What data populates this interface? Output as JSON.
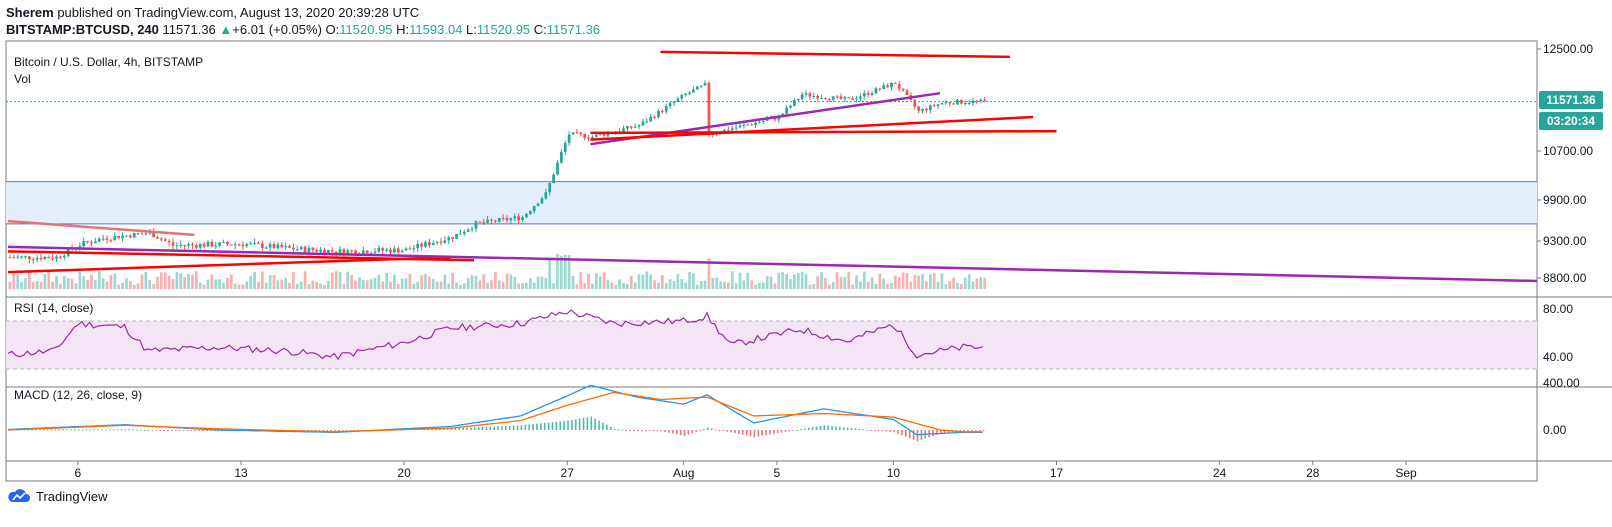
{
  "header": {
    "publisher": "Sherem",
    "published_text": "published on TradingView.com, August 13, 2020 20:39:28 UTC",
    "symbol": "BITSTAMP:BTCUSD, 240",
    "last": "11571.36",
    "change": "+6.01 (+0.05%)",
    "open_label": "O:",
    "open": "11520.95",
    "high_label": "H:",
    "high": "11593.04",
    "low_label": "L:",
    "low": "11520.95",
    "close_label": "C:",
    "close": "11571.36"
  },
  "panes": {
    "price_title": "Bitcoin / U.S. Dollar, 4h, BITSTAMP",
    "vol_title": "Vol",
    "rsi_title": "RSI (14, close)",
    "macd_title": "MACD (12, 26, close, 9)"
  },
  "price_badge": "11571.36",
  "countdown_badge": "03:20:34",
  "footer": {
    "brand": "TradingView"
  },
  "colors": {
    "up": "#26a69a",
    "down": "#ef5350",
    "trend_red": "#ff0000",
    "trend_purple": "#9c27b0",
    "zone_fill": "#e3eefa",
    "zone_line": "#5b6ee1",
    "rsi_band": "#f3e5f5",
    "macd": "#2196f3",
    "signal": "#ff6d00",
    "badge_green": "#26a69a"
  },
  "chart_data": [
    {
      "type": "candlestick",
      "pane": "price",
      "title": "Bitcoin / U.S. Dollar, 4h, BITSTAMP",
      "y_ticks": [
        12500,
        10700,
        9900,
        9300,
        8800
      ],
      "ylim": [
        8700,
        12600
      ],
      "x_ticks": [
        "6",
        "13",
        "20",
        "27",
        "Aug",
        "5",
        "10",
        "17",
        "24",
        "28",
        "Sep"
      ],
      "last_price": 11571.36,
      "period_start": "Jul 3",
      "period_end": "Aug 13",
      "approx_path": [
        [
          "Jul 3",
          9080
        ],
        [
          "Jul 5",
          9080
        ],
        [
          "Jul 6",
          9250
        ],
        [
          "Jul 7",
          9340
        ],
        [
          "Jul 9",
          9420
        ],
        [
          "Jul 10",
          9240
        ],
        [
          "Jul 13",
          9260
        ],
        [
          "Jul 15",
          9200
        ],
        [
          "Jul 17",
          9160
        ],
        [
          "Jul 20",
          9180
        ],
        [
          "Jul 22",
          9360
        ],
        [
          "Jul 23",
          9550
        ],
        [
          "Jul 25",
          9650
        ],
        [
          "Jul 26",
          10000
        ],
        [
          "Jul 27",
          11000
        ],
        [
          "Jul 28",
          10950
        ],
        [
          "Jul 30",
          11150
        ],
        [
          "Aug 1",
          11700
        ],
        [
          "Aug 2",
          11900
        ],
        [
          "Aug 2",
          11000
        ],
        [
          "Aug 3",
          11100
        ],
        [
          "Aug 5",
          11300
        ],
        [
          "Aug 6",
          11700
        ],
        [
          "Aug 8",
          11600
        ],
        [
          "Aug 10",
          11900
        ],
        [
          "Aug 11",
          11400
        ],
        [
          "Aug 12",
          11550
        ],
        [
          "Aug 13",
          11571
        ]
      ],
      "zone": [
        9550,
        10200
      ],
      "trendlines": 7
    },
    {
      "type": "line",
      "pane": "rsi",
      "title": "RSI (14, close)",
      "y_ticks": [
        80,
        40
      ],
      "ylim": [
        25,
        88
      ],
      "bands": [
        70,
        30
      ],
      "approx_path": [
        [
          "Jul 3",
          42
        ],
        [
          "Jul 5",
          45
        ],
        [
          "Jul 6",
          68
        ],
        [
          "Jul 8",
          65
        ],
        [
          "Jul 9",
          45
        ],
        [
          "Jul 12",
          48
        ],
        [
          "Jul 15",
          45
        ],
        [
          "Jul 17",
          40
        ],
        [
          "Jul 20",
          52
        ],
        [
          "Jul 22",
          64
        ],
        [
          "Jul 25",
          68
        ],
        [
          "Jul 27",
          78
        ],
        [
          "Jul 29",
          68
        ],
        [
          "Aug 1",
          70
        ],
        [
          "Aug 2",
          74
        ],
        [
          "Aug 3",
          50
        ],
        [
          "Aug 6",
          63
        ],
        [
          "Aug 8",
          53
        ],
        [
          "Aug 10",
          67
        ],
        [
          "Aug 11",
          42
        ],
        [
          "Aug 12",
          45
        ],
        [
          "Aug 13",
          48
        ]
      ]
    },
    {
      "type": "line",
      "pane": "macd",
      "title": "MACD (12, 26, close, 9)",
      "y_ticks": [
        400,
        0
      ],
      "ylim": [
        -120,
        440
      ],
      "series": [
        {
          "name": "MACD",
          "color": "#2196f3",
          "approx_path": [
            [
              "Jul 3",
              5
            ],
            [
              "Jul 8",
              45
            ],
            [
              "Jul 12",
              0
            ],
            [
              "Jul 17",
              -20
            ],
            [
              "Jul 22",
              30
            ],
            [
              "Jul 25",
              120
            ],
            [
              "Jul 27",
              290
            ],
            [
              "Jul 28",
              380
            ],
            [
              "Jul 30",
              280
            ],
            [
              "Aug 1",
              220
            ],
            [
              "Aug 2",
              300
            ],
            [
              "Aug 4",
              60
            ],
            [
              "Aug 7",
              180
            ],
            [
              "Aug 10",
              90
            ],
            [
              "Aug 11",
              -40
            ],
            [
              "Aug 13",
              -20
            ]
          ]
        },
        {
          "name": "Signal",
          "color": "#ff6d00",
          "approx_path": [
            [
              "Jul 3",
              0
            ],
            [
              "Jul 8",
              40
            ],
            [
              "Jul 12",
              10
            ],
            [
              "Jul 17",
              -15
            ],
            [
              "Jul 22",
              15
            ],
            [
              "Jul 25",
              80
            ],
            [
              "Jul 27",
              210
            ],
            [
              "Jul 29",
              320
            ],
            [
              "Jul 31",
              260
            ],
            [
              "Aug 2",
              280
            ],
            [
              "Aug 4",
              120
            ],
            [
              "Aug 7",
              140
            ],
            [
              "Aug 10",
              110
            ],
            [
              "Aug 12",
              0
            ],
            [
              "Aug 13",
              -15
            ]
          ]
        }
      ]
    }
  ]
}
